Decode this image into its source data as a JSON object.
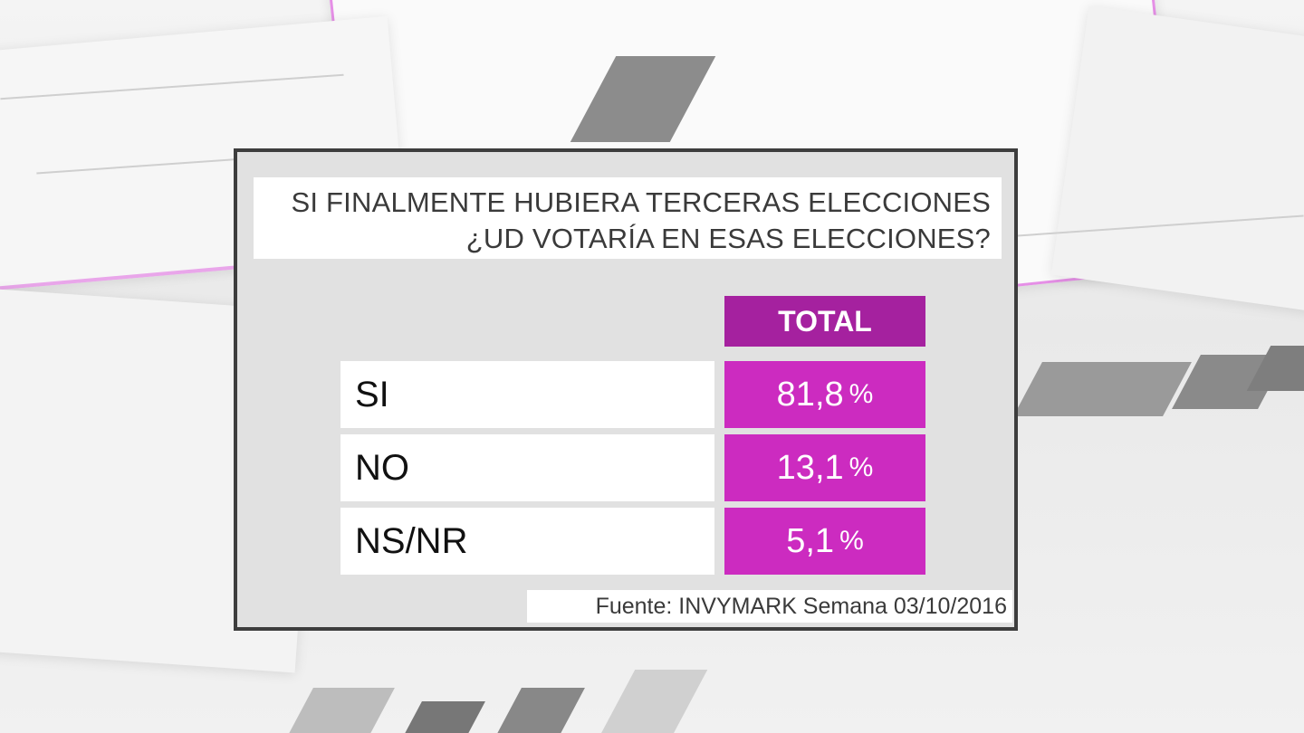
{
  "question": {
    "line1": "SI FINALMENTE HUBIERA TERCERAS ELECCIONES",
    "line2": "¿UD VOTARÍA EN ESAS ELECCIONES?"
  },
  "table": {
    "column_header": "TOTAL",
    "rows": [
      {
        "label": "SI",
        "value": "81,8",
        "unit": "%"
      },
      {
        "label": "NO",
        "value": "13,1",
        "unit": "%"
      },
      {
        "label": "NS/NR",
        "value": "5,1",
        "unit": "%"
      }
    ]
  },
  "source": "Fuente: INVYMARK  Semana 03/10/2016",
  "colors": {
    "header": "#a5219f",
    "value_cell": "#cc2bc0",
    "accent_line": "#e58fe6",
    "card_border": "#3d3d3d"
  }
}
